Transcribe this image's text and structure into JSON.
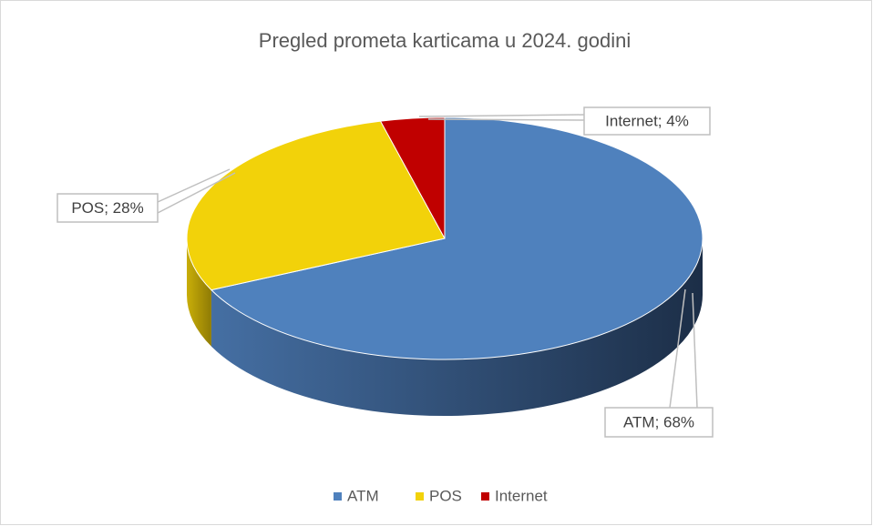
{
  "chart_data": {
    "type": "pie3d",
    "title": "Pregled prometa karticama u 2024. godini",
    "categories": [
      "ATM",
      "POS",
      "Internet"
    ],
    "values": [
      68,
      28,
      4
    ],
    "value_labels": [
      "ATM; 68%",
      "POS; 28%",
      "Internet; 4%"
    ],
    "colors": [
      "#4f81bd",
      "#f2d20a",
      "#c00000"
    ],
    "legend": "bottom"
  }
}
